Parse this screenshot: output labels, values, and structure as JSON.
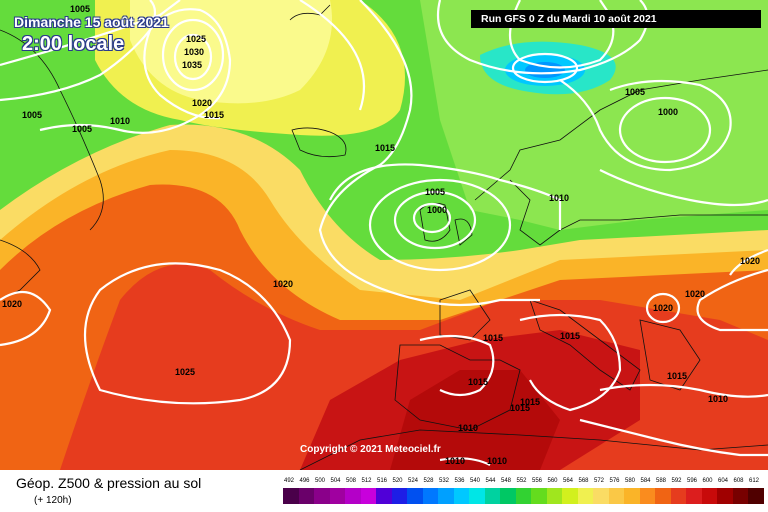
{
  "header": {
    "date": "Dimanche 15 août 2021",
    "local_time": "2:00 locale",
    "run_info": "Run GFS 0 Z du Mardi 10 août 2021"
  },
  "copyright": "Copyright © 2021 Meteociel.fr",
  "footer": {
    "title": "Géop. Z500 & pression au sol",
    "forecast_hour": "(+ 120h)"
  },
  "legend": {
    "labels": [
      "492",
      "496",
      "500",
      "504",
      "508",
      "512",
      "516",
      "520",
      "524",
      "528",
      "532",
      "536",
      "540",
      "544",
      "548",
      "552",
      "556",
      "560",
      "564",
      "568",
      "572",
      "576",
      "580",
      "584",
      "588",
      "592",
      "596",
      "600",
      "604",
      "608",
      "612"
    ],
    "colors": [
      "#4a004a",
      "#6a006a",
      "#8a008a",
      "#a000a0",
      "#b400c8",
      "#c800dc",
      "#5000d8",
      "#1e1ee6",
      "#0050f0",
      "#0078ff",
      "#00a0ff",
      "#00c8ff",
      "#00e6e6",
      "#00d2a0",
      "#00c864",
      "#32d232",
      "#64dc1e",
      "#a0e61e",
      "#d2f01e",
      "#f0f050",
      "#fadc64",
      "#fac846",
      "#fab428",
      "#fa8c1e",
      "#f06414",
      "#e63c1e",
      "#dc1e1e",
      "#c80a0a",
      "#a00000",
      "#780000",
      "#500000"
    ]
  },
  "isobars": [
    {
      "label": "1005",
      "pos": [
        80,
        12
      ]
    },
    {
      "label": "1025",
      "pos": [
        196,
        42
      ]
    },
    {
      "label": "1030",
      "pos": [
        194,
        55
      ]
    },
    {
      "label": "1035",
      "pos": [
        192,
        68
      ]
    },
    {
      "label": "1020",
      "pos": [
        202,
        106
      ]
    },
    {
      "label": "1015",
      "pos": [
        214,
        118
      ]
    },
    {
      "label": "1005",
      "pos": [
        32,
        118
      ]
    },
    {
      "label": "1010",
      "pos": [
        120,
        124
      ]
    },
    {
      "label": "1005",
      "pos": [
        82,
        132
      ]
    },
    {
      "label": "1015",
      "pos": [
        385,
        151
      ]
    },
    {
      "label": "1005",
      "pos": [
        635,
        95
      ]
    },
    {
      "label": "1000",
      "pos": [
        668,
        115
      ]
    },
    {
      "label": "1005",
      "pos": [
        435,
        195
      ]
    },
    {
      "label": "1000",
      "pos": [
        437,
        213
      ]
    },
    {
      "label": "1010",
      "pos": [
        559,
        201
      ]
    },
    {
      "label": "1020",
      "pos": [
        283,
        287
      ]
    },
    {
      "label": "1020",
      "pos": [
        12,
        307
      ]
    },
    {
      "label": "1020",
      "pos": [
        750,
        264
      ]
    },
    {
      "label": "1020",
      "pos": [
        695,
        297
      ]
    },
    {
      "label": "1020",
      "pos": [
        663,
        311
      ]
    },
    {
      "label": "1015",
      "pos": [
        493,
        341
      ]
    },
    {
      "label": "1015",
      "pos": [
        570,
        339
      ]
    },
    {
      "label": "1025",
      "pos": [
        185,
        375
      ]
    },
    {
      "label": "1015",
      "pos": [
        478,
        385
      ]
    },
    {
      "label": "1015",
      "pos": [
        677,
        379
      ]
    },
    {
      "label": "1015",
      "pos": [
        530,
        405
      ]
    },
    {
      "label": "1015",
      "pos": [
        520,
        411
      ]
    },
    {
      "label": "1010",
      "pos": [
        718,
        402
      ]
    },
    {
      "label": "1010",
      "pos": [
        468,
        431
      ]
    },
    {
      "label": "1010",
      "pos": [
        455,
        464
      ]
    },
    {
      "label": "1010",
      "pos": [
        497,
        464
      ]
    }
  ]
}
